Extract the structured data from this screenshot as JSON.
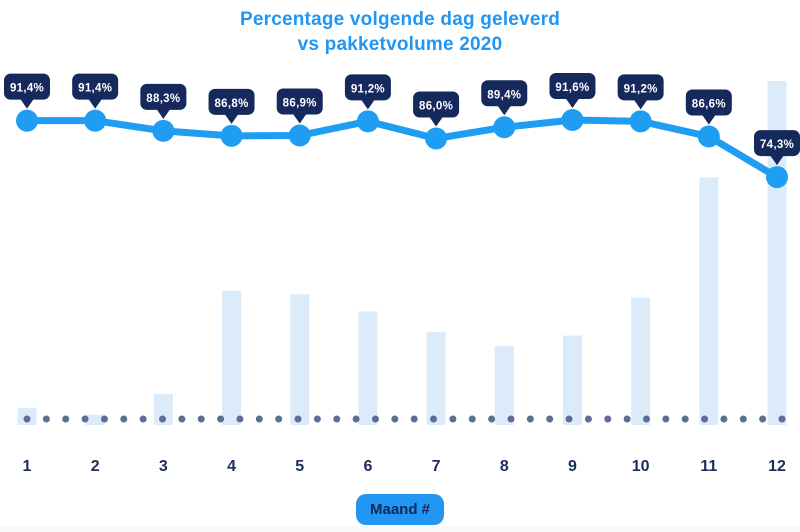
{
  "title": {
    "line1": "Percentage volgende dag geleverd",
    "line2": "vs pakketvolume 2020"
  },
  "x_axis": {
    "label": "Maand #",
    "ticks": [
      "1",
      "2",
      "3",
      "4",
      "5",
      "6",
      "7",
      "8",
      "9",
      "10",
      "11",
      "12"
    ]
  },
  "colors": {
    "title_blue": "#2196f3",
    "line_blue": "#1e9df2",
    "badge_navy": "#16295c",
    "badge_text": "#ffffff",
    "bar_light_blue": "#dcebfa",
    "dot_slate": "#5c6e93",
    "tick_navy": "#1b2d5e",
    "pill_bg": "#2196f3",
    "pill_text": "#14275a"
  },
  "chart_data": {
    "type": "combo",
    "title": "Percentage volgende dag geleverd vs pakketvolume 2020",
    "xlabel": "Maand #",
    "categories": [
      "1",
      "2",
      "3",
      "4",
      "5",
      "6",
      "7",
      "8",
      "9",
      "10",
      "11",
      "12"
    ],
    "series": [
      {
        "name": "Percentage volgende dag geleverd",
        "type": "line",
        "unit": "%",
        "values": [
          91.4,
          91.4,
          88.3,
          86.8,
          86.9,
          91.2,
          86.0,
          89.4,
          91.6,
          91.2,
          86.6,
          74.3
        ],
        "labels": [
          "91,4%",
          "91,4%",
          "88,3%",
          "86,8%",
          "86,9%",
          "91,2%",
          "86,0%",
          "89,4%",
          "91,6%",
          "91,2%",
          "86,6%",
          "74,3%"
        ]
      },
      {
        "name": "Pakketvolume 2020",
        "type": "bar",
        "unit": "relative (max = 100)",
        "values": [
          5,
          3,
          9,
          39,
          38,
          33,
          27,
          23,
          26,
          37,
          72,
          100
        ]
      }
    ],
    "legend": "none",
    "grid": false,
    "y_axis_visible": false,
    "baseline_style": "dotted"
  }
}
